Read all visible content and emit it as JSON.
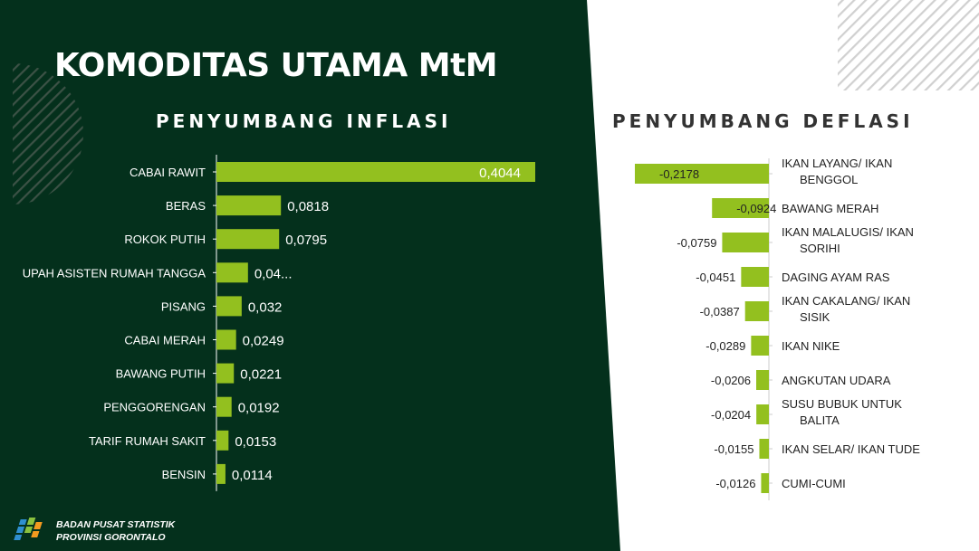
{
  "title": "KOMODITAS UTAMA MtM",
  "colors": {
    "panel": "#04301c",
    "bar": "#93c01f",
    "hatch": "#cfcfcf"
  },
  "footer": {
    "line1": "BADAN PUSAT STATISTIK",
    "line2": "PROVINSI GORONTALO"
  },
  "chart_data": [
    {
      "type": "bar",
      "title": "PENYUMBANG INFLASI",
      "orientation": "horizontal",
      "categories": [
        "CABAI RAWIT",
        "BERAS",
        "ROKOK PUTIH",
        "UPAH ASISTEN RUMAH TANGGA",
        "PISANG",
        "CABAI MERAH",
        "BAWANG PUTIH",
        "PENGGORENGAN",
        "TARIF RUMAH SAKIT",
        "BENSIN"
      ],
      "values": [
        0.4044,
        0.0818,
        0.0795,
        0.04,
        0.032,
        0.0249,
        0.0221,
        0.0192,
        0.0153,
        0.0114
      ],
      "labels": [
        "0,4044",
        "0,0818",
        "0,0795",
        "0,04...",
        "0,032",
        "0,0249",
        "0,0221",
        "0,0192",
        "0,0153",
        "0,0114"
      ]
    },
    {
      "type": "bar",
      "title": "PENYUMBANG DEFLASI",
      "orientation": "horizontal",
      "categories": [
        "IKAN LAYANG/ IKAN BENGGOL",
        "BAWANG MERAH",
        "IKAN MALALUGIS/ IKAN SORIHI",
        "DAGING AYAM RAS",
        "IKAN CAKALANG/ IKAN SISIK",
        "IKAN NIKE",
        "ANGKUTAN UDARA",
        "SUSU BUBUK UNTUK BALITA",
        "IKAN SELAR/ IKAN TUDE",
        "CUMI-CUMI"
      ],
      "values": [
        -0.2178,
        -0.0924,
        -0.0759,
        -0.0451,
        -0.0387,
        -0.0289,
        -0.0206,
        -0.0204,
        -0.0155,
        -0.0126
      ],
      "labels": [
        "-0,2178",
        "-0,0924",
        "-0,0759",
        "-0,0451",
        "-0,0387",
        "-0,0289",
        "-0,0206",
        "-0,0204",
        "-0,0155",
        "-0,0126"
      ]
    }
  ]
}
